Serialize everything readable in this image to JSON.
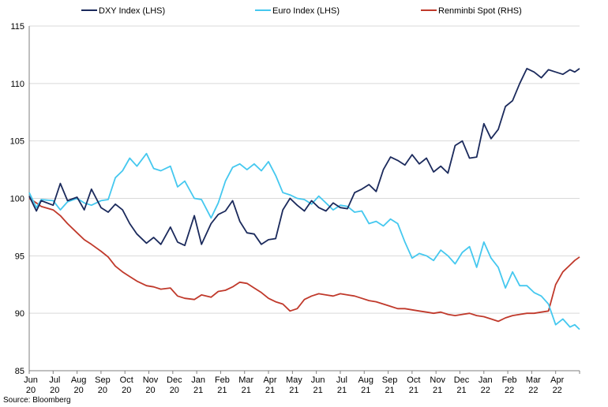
{
  "chart_data": {
    "type": "line",
    "title": "",
    "xlabel": "",
    "ylabel": "",
    "ylim": [
      85,
      115
    ],
    "yticks": [
      85,
      90,
      95,
      100,
      105,
      110,
      115
    ],
    "grid": true,
    "legend_position": "top",
    "categories": [
      "Jun 20",
      "Jul 20",
      "Aug 20",
      "Sep 20",
      "Oct 20",
      "Nov 20",
      "Dec 20",
      "Jan 21",
      "Feb 21",
      "Mar 21",
      "Apr 21",
      "May 21",
      "Jun 21",
      "Jul 21",
      "Aug 21",
      "Sep 21",
      "Oct 21",
      "Nov 21",
      "Dec 21",
      "Jan 22",
      "Feb 22",
      "Mar 22",
      "Apr 22"
    ],
    "tick_labels": [
      [
        "Jun",
        "20"
      ],
      [
        "Jul",
        "20"
      ],
      [
        "Aug",
        "20"
      ],
      [
        "Sep",
        "20"
      ],
      [
        "Oct",
        "20"
      ],
      [
        "Nov",
        "20"
      ],
      [
        "Dec",
        "20"
      ],
      [
        "Jan",
        "21"
      ],
      [
        "Feb",
        "21"
      ],
      [
        "Mar",
        "21"
      ],
      [
        "Apr",
        "21"
      ],
      [
        "May",
        "21"
      ],
      [
        "Jun",
        "21"
      ],
      [
        "Jul",
        "21"
      ],
      [
        "Aug",
        "21"
      ],
      [
        "Sep",
        "21"
      ],
      [
        "Oct",
        "21"
      ],
      [
        "Nov",
        "21"
      ],
      [
        "Dec",
        "21"
      ],
      [
        "Jan",
        "22"
      ],
      [
        "Feb",
        "22"
      ],
      [
        "Mar",
        "22"
      ],
      [
        "Apr",
        "22"
      ]
    ],
    "series": [
      {
        "name": "DXY Index (LHS)",
        "color": "#1b2a5c",
        "x": [
          0,
          0.3,
          0.5,
          1.0,
          1.3,
          1.6,
          2.0,
          2.3,
          2.6,
          3.0,
          3.3,
          3.6,
          3.9,
          4.2,
          4.5,
          4.9,
          5.2,
          5.5,
          5.9,
          6.2,
          6.5,
          6.9,
          7.2,
          7.6,
          7.9,
          8.2,
          8.5,
          8.8,
          9.1,
          9.4,
          9.7,
          10.0,
          10.3,
          10.6,
          10.9,
          11.2,
          11.5,
          11.8,
          12.1,
          12.4,
          12.7,
          13.0,
          13.3,
          13.6,
          13.9,
          14.2,
          14.5,
          14.8,
          15.1,
          15.4,
          15.7,
          16.0,
          16.3,
          16.6,
          16.9,
          17.2,
          17.5,
          17.8,
          18.1,
          18.4,
          18.7,
          19.0,
          19.3,
          19.6,
          19.9,
          20.2,
          20.5,
          20.8,
          21.1,
          21.4,
          21.7,
          22.0,
          22.3,
          22.6,
          22.8,
          23.0
        ],
        "values": [
          100.2,
          98.9,
          99.8,
          99.4,
          101.3,
          99.8,
          100.1,
          99.0,
          100.8,
          99.2,
          98.8,
          99.5,
          99.0,
          97.8,
          96.9,
          96.1,
          96.6,
          96.0,
          97.5,
          96.2,
          95.9,
          98.5,
          96.0,
          97.8,
          98.6,
          98.9,
          99.8,
          98.0,
          97.0,
          96.9,
          96.0,
          96.4,
          96.5,
          99.0,
          100.0,
          99.4,
          98.9,
          99.8,
          99.2,
          98.9,
          99.6,
          99.2,
          99.1,
          100.5,
          100.8,
          101.2,
          100.6,
          102.5,
          103.6,
          103.3,
          102.9,
          103.8,
          103.0,
          103.5,
          102.3,
          102.8,
          102.2,
          104.6,
          105.0,
          103.5,
          103.6,
          106.5,
          105.2,
          106.0,
          108.0,
          108.5,
          110.0,
          111.3,
          111.0,
          110.5,
          111.2,
          111.0,
          110.8,
          111.2,
          111.0,
          111.3
        ]
      },
      {
        "name": "Euro Index (LHS)",
        "color": "#45c8ef",
        "x": [
          0,
          0.3,
          0.5,
          1.0,
          1.3,
          1.6,
          2.0,
          2.3,
          2.6,
          3.0,
          3.3,
          3.6,
          3.9,
          4.2,
          4.5,
          4.9,
          5.2,
          5.5,
          5.9,
          6.2,
          6.5,
          6.9,
          7.2,
          7.6,
          7.9,
          8.2,
          8.5,
          8.8,
          9.1,
          9.4,
          9.7,
          10.0,
          10.3,
          10.6,
          10.9,
          11.2,
          11.5,
          11.8,
          12.1,
          12.4,
          12.7,
          13.0,
          13.3,
          13.6,
          13.9,
          14.2,
          14.5,
          14.8,
          15.1,
          15.4,
          15.7,
          16.0,
          16.3,
          16.6,
          16.9,
          17.2,
          17.5,
          17.8,
          18.1,
          18.4,
          18.7,
          19.0,
          19.3,
          19.6,
          19.9,
          20.2,
          20.5,
          20.8,
          21.1,
          21.4,
          21.7,
          22.0,
          22.3,
          22.6,
          22.8,
          23.0
        ],
        "values": [
          100.5,
          99.2,
          99.9,
          99.8,
          99.0,
          99.7,
          100.0,
          99.6,
          99.4,
          99.8,
          99.9,
          101.8,
          102.4,
          103.5,
          102.8,
          103.9,
          102.6,
          102.4,
          102.8,
          101.0,
          101.5,
          100.0,
          99.9,
          98.3,
          99.6,
          101.5,
          102.7,
          103.0,
          102.5,
          103.0,
          102.4,
          103.2,
          102.0,
          100.5,
          100.3,
          100.0,
          99.9,
          99.5,
          100.2,
          99.6,
          99.0,
          99.4,
          99.3,
          98.8,
          98.9,
          97.8,
          98.0,
          97.6,
          98.2,
          97.8,
          96.2,
          94.8,
          95.2,
          95.0,
          94.6,
          95.5,
          95.0,
          94.3,
          95.3,
          95.8,
          94.0,
          96.2,
          94.8,
          94.0,
          92.2,
          93.6,
          92.4,
          92.4,
          91.8,
          91.5,
          90.8,
          89.0,
          89.5,
          88.8,
          89.0,
          88.6
        ]
      },
      {
        "name": "Renminbi Spot (RHS)",
        "color": "#c0392b",
        "x": [
          0,
          0.3,
          0.5,
          1.0,
          1.3,
          1.6,
          2.0,
          2.3,
          2.6,
          3.0,
          3.3,
          3.6,
          3.9,
          4.2,
          4.5,
          4.9,
          5.2,
          5.5,
          5.9,
          6.2,
          6.5,
          6.9,
          7.2,
          7.6,
          7.9,
          8.2,
          8.5,
          8.8,
          9.1,
          9.4,
          9.7,
          10.0,
          10.3,
          10.6,
          10.9,
          11.2,
          11.5,
          11.8,
          12.1,
          12.4,
          12.7,
          13.0,
          13.3,
          13.6,
          13.9,
          14.2,
          14.5,
          14.8,
          15.1,
          15.4,
          15.7,
          16.0,
          16.3,
          16.6,
          16.9,
          17.2,
          17.5,
          17.8,
          18.1,
          18.4,
          18.7,
          19.0,
          19.3,
          19.6,
          19.9,
          20.2,
          20.5,
          20.8,
          21.1,
          21.4,
          21.7,
          22.0,
          22.3,
          22.6,
          22.8,
          23.0
        ],
        "values": [
          100.0,
          99.6,
          99.3,
          99.0,
          98.5,
          97.8,
          97.0,
          96.4,
          96.0,
          95.4,
          94.9,
          94.1,
          93.6,
          93.2,
          92.8,
          92.4,
          92.3,
          92.1,
          92.2,
          91.5,
          91.3,
          91.2,
          91.6,
          91.4,
          91.9,
          92.0,
          92.3,
          92.7,
          92.6,
          92.2,
          91.8,
          91.3,
          91.0,
          90.8,
          90.2,
          90.4,
          91.2,
          91.5,
          91.7,
          91.6,
          91.5,
          91.7,
          91.6,
          91.5,
          91.3,
          91.1,
          91.0,
          90.8,
          90.6,
          90.4,
          90.4,
          90.3,
          90.2,
          90.1,
          90.0,
          90.1,
          89.9,
          89.8,
          89.9,
          90.0,
          89.8,
          89.7,
          89.5,
          89.3,
          89.6,
          89.8,
          89.9,
          90.0,
          90.0,
          90.1,
          90.2,
          92.5,
          93.6,
          94.2,
          94.6,
          94.9
        ]
      }
    ],
    "source": "Source: Bloomberg"
  }
}
